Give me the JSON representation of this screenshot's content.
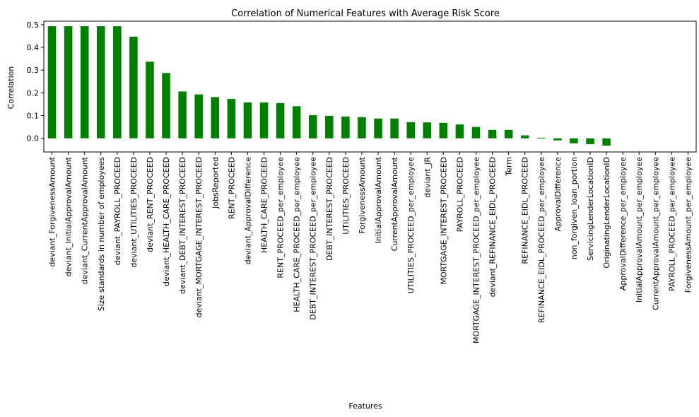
{
  "chart_data": {
    "type": "bar",
    "title": "Correlation of Numerical Features with Average Risk Score",
    "xlabel": "Features",
    "ylabel": "Correlation",
    "ylim": [
      -0.06,
      0.515
    ],
    "yticks": [
      0.0,
      0.1,
      0.2,
      0.3,
      0.4,
      0.5
    ],
    "ytick_labels": [
      "0.0",
      "0.1",
      "0.2",
      "0.3",
      "0.4",
      "0.5"
    ],
    "bar_color": "#008000",
    "grid": false,
    "legend": false,
    "categories": [
      "deviant_ForgivenessAmount",
      "deviant_InitialApprovalAmount",
      "deviant_CurrentApprovalAmount",
      "Size standards in number of employees",
      "deviant_PAYROLL_PROCEED",
      "deviant_UTILITIES_PROCEED",
      "deviant_RENT_PROCEED",
      "deviant_HEALTH_CARE_PROCEED",
      "deviant_DEBT_INTEREST_PROCEED",
      "deviant_MORTGAGE_INTEREST_PROCEED",
      "JobsReported",
      "RENT_PROCEED",
      "deviant_ApprovalDifference",
      "HEALTH_CARE_PROCEED",
      "RENT_PROCEED_per_employee",
      "HEALTH_CARE_PROCEED_per_employee",
      "DEBT_INTEREST_PROCEED_per_employee",
      "DEBT_INTEREST_PROCEED",
      "UTILITIES_PROCEED",
      "ForgivenessAmount",
      "InitialApprovalAmount",
      "CurrentApprovalAmount",
      "UTILITIES_PROCEED_per_employee",
      "deviant_JR",
      "MORTGAGE_INTEREST_PROCEED",
      "PAYROLL_PROCEED",
      "MORTGAGE_INTEREST_PROCEED_per_employee",
      "deviant_REFINANCE_EIDL_PROCEED",
      "Term",
      "REFINANCE_EIDL_PROCEED",
      "REFINANCE_EIDL_PROCEED_per_employee",
      "ApprovalDifference",
      "non_forgiven_loan_portion",
      "ServicingLenderLocationID",
      "OriginatingLenderLocationID",
      "ApprovalDifference_per_employee",
      "InitialApprovalAmount_per_employee",
      "CurrentApprovalAmount_per_employee",
      "PAYROLL_PROCEED_per_employee",
      "ForgivenessAmount_per_employee"
    ],
    "values": [
      0.493,
      0.493,
      0.493,
      0.493,
      0.493,
      0.447,
      0.337,
      0.287,
      0.206,
      0.193,
      0.181,
      0.173,
      0.158,
      0.158,
      0.155,
      0.141,
      0.102,
      0.099,
      0.096,
      0.093,
      0.087,
      0.087,
      0.071,
      0.07,
      0.068,
      0.061,
      0.05,
      0.037,
      0.037,
      0.013,
      0.003,
      -0.009,
      -0.022,
      -0.026,
      -0.032,
      0,
      0,
      0,
      0,
      0
    ]
  }
}
